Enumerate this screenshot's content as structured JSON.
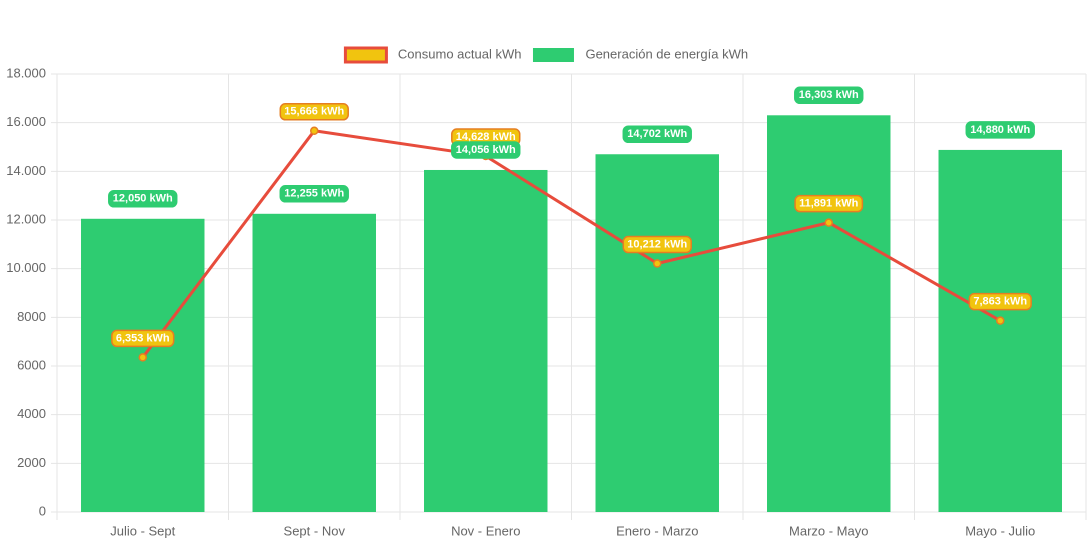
{
  "chart_data": {
    "type": "bar",
    "categories": [
      "Julio - Sept",
      "Sept - Nov",
      "Nov - Enero",
      "Enero - Marzo",
      "Marzo - Mayo",
      "Mayo - Julio"
    ],
    "series": [
      {
        "name": "Consumo actual kWh",
        "type": "line",
        "color": "#e74c3c",
        "point_color": "#f1c40f",
        "values": [
          6353,
          15666,
          14628,
          10212,
          11891,
          7863
        ],
        "value_labels": [
          "6,353 kWh",
          "15,666 kWh",
          "14,628 kWh",
          "10,212 kWh",
          "11,891 kWh",
          "7,863 kWh"
        ]
      },
      {
        "name": "Generación de energía kWh",
        "type": "bar",
        "color": "#2ecc71",
        "values": [
          12050,
          12255,
          14056,
          14702,
          16303,
          14880
        ],
        "value_labels": [
          "12,050 kWh",
          "12,255 kWh",
          "14,056 kWh",
          "14,702 kWh",
          "16,303 kWh",
          "14,880 kWh"
        ]
      }
    ],
    "ylim": [
      0,
      18000
    ],
    "yticks": [
      0,
      2000,
      4000,
      6000,
      8000,
      {
        "value": 10000,
        "label": "10.000"
      },
      {
        "value": 12000,
        "label": "12.000"
      },
      {
        "value": 14000,
        "label": "14.000"
      },
      {
        "value": 16000,
        "label": "16.000"
      },
      {
        "value": 18000,
        "label": "18.000"
      }
    ],
    "grid": true,
    "legend": "top"
  }
}
